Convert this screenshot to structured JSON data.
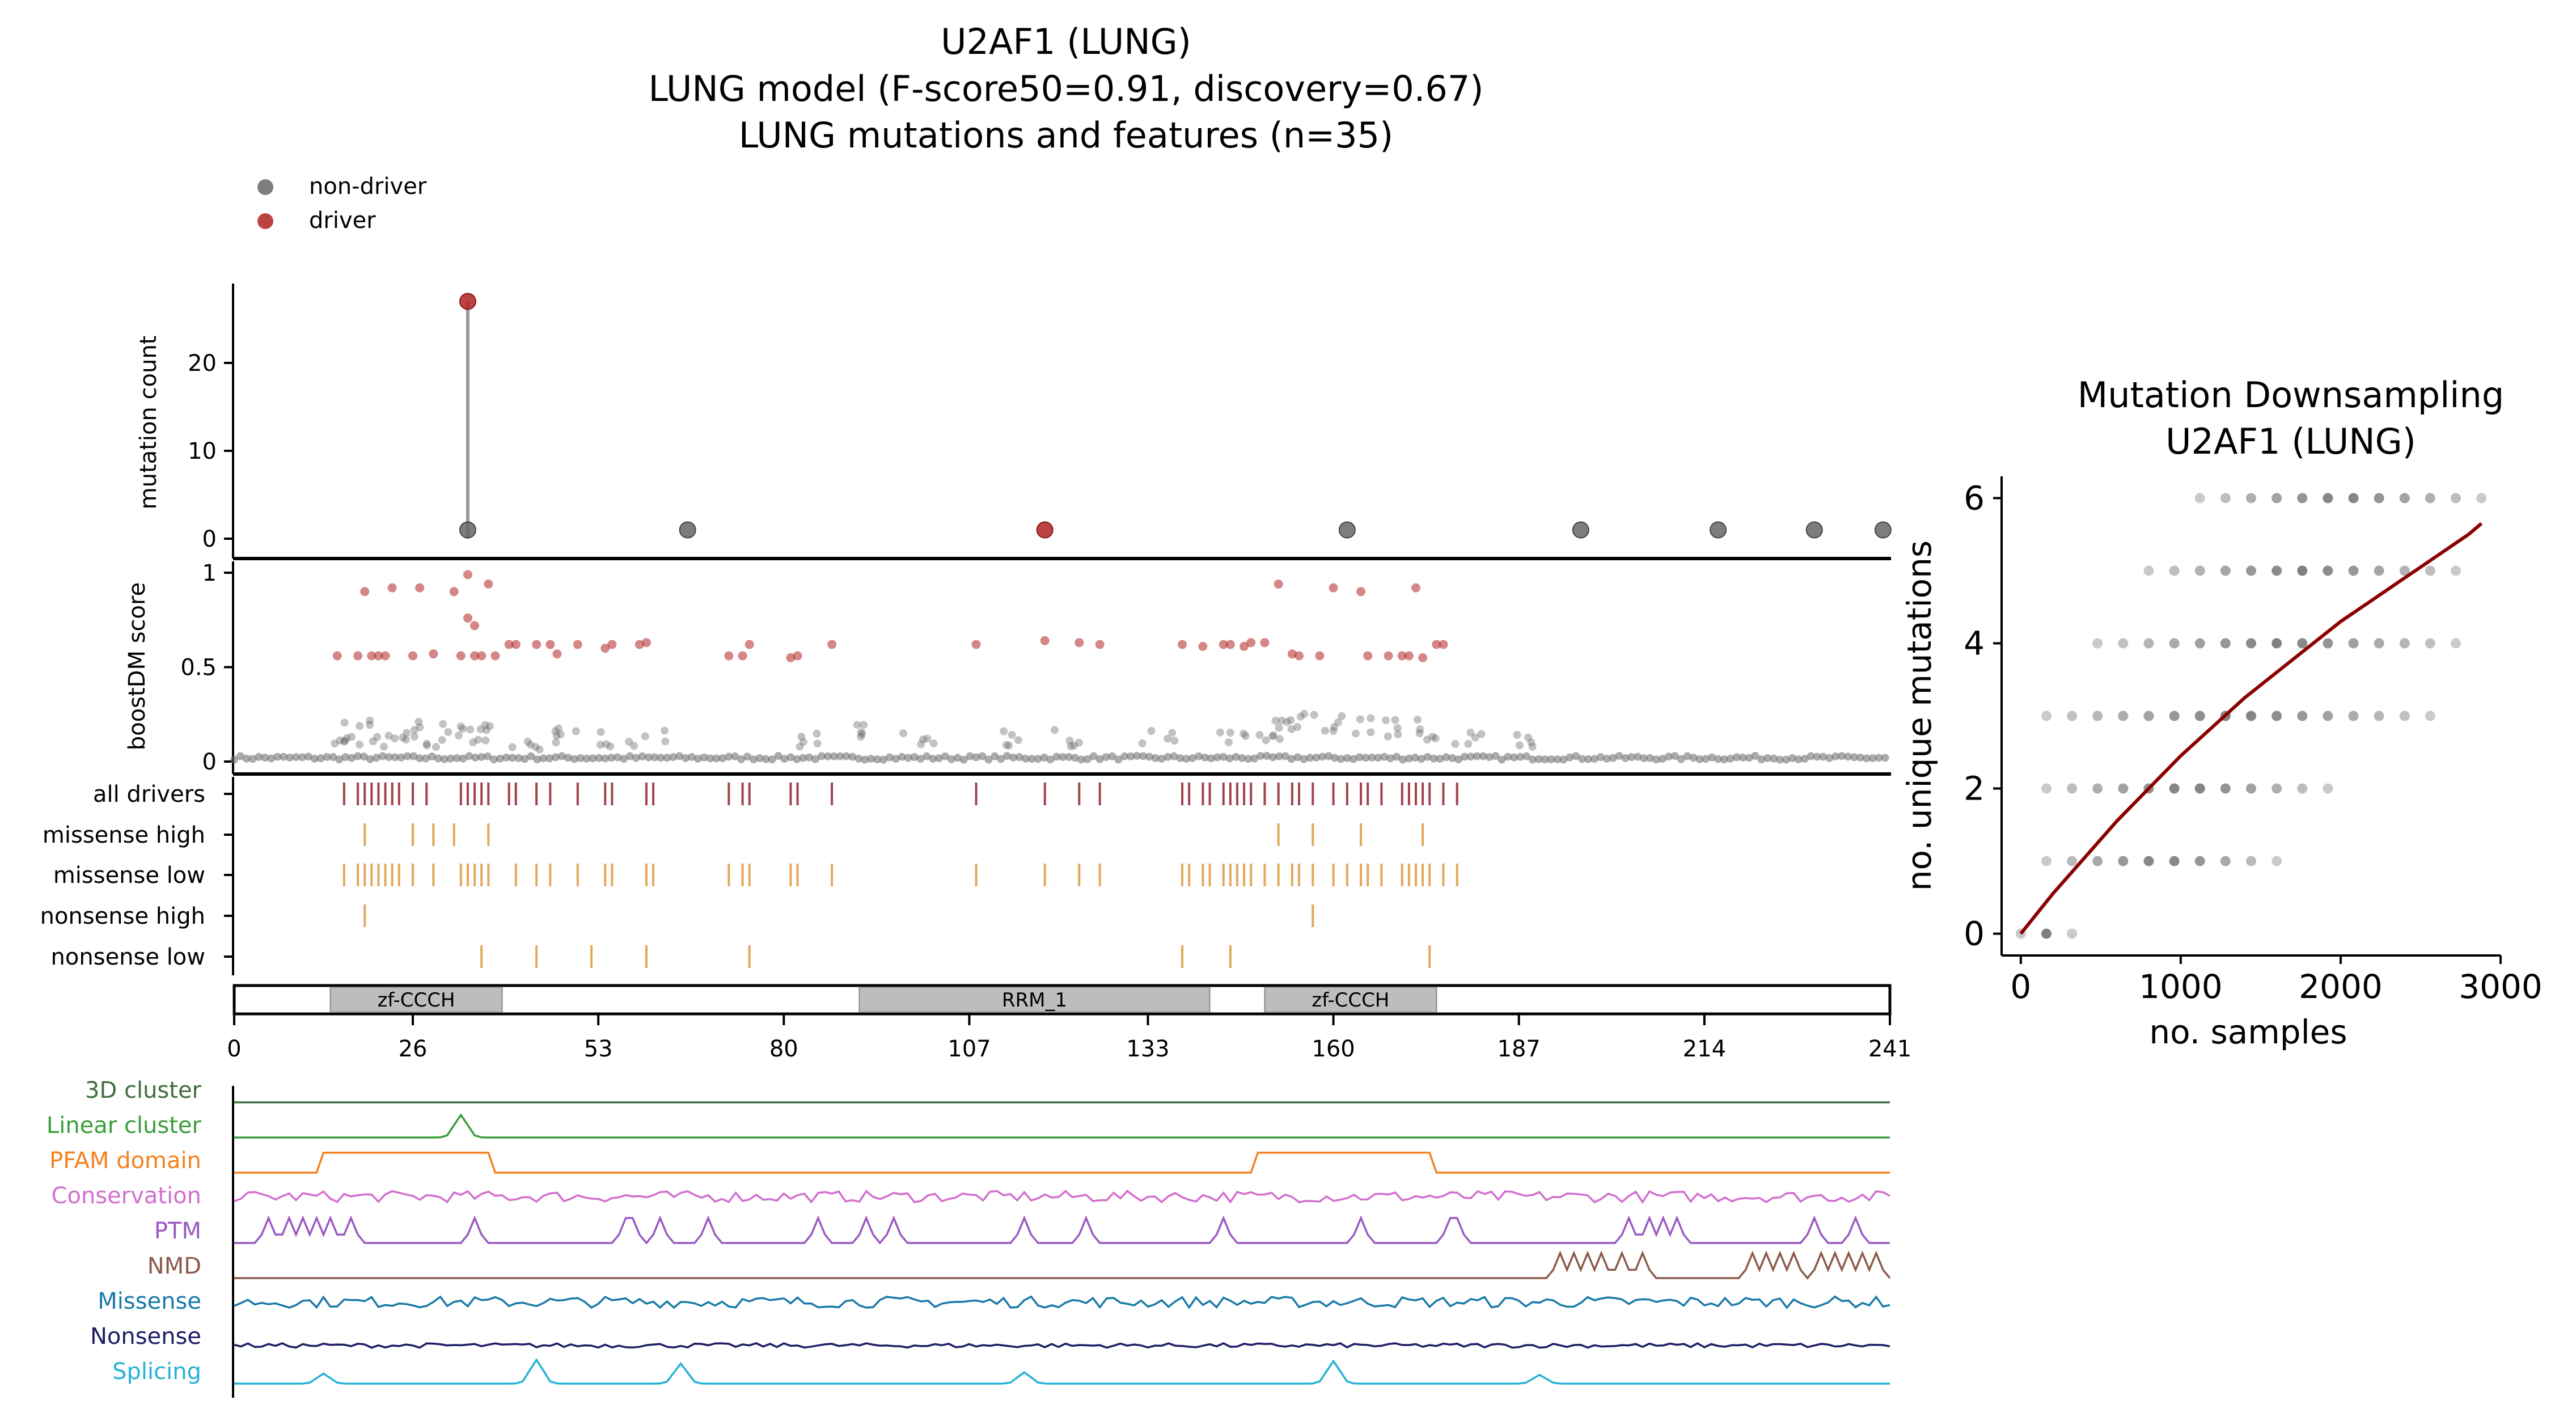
{
  "header": {
    "title_line1": "U2AF1 (LUNG)",
    "title_line2": "LUNG model (F-score50=0.91, discovery=0.67)",
    "title_line3": "LUNG mutations and features (n=35)"
  },
  "legend": {
    "items": [
      {
        "label": "non-driver",
        "color": "#666666"
      },
      {
        "label": "driver",
        "color": "#b22222"
      }
    ]
  },
  "colors": {
    "driver": "#b22222",
    "nondriver": "#666666",
    "track_driver": "#a0424c",
    "track_feature": "#e3a85a",
    "curve": "#8b0000",
    "domain_fill": "#bdbdbd"
  },
  "chart_data": [
    {
      "type": "scatter",
      "panel": "mutation-count-lollipop",
      "ylabel": "mutation count",
      "ylim": [
        0,
        28
      ],
      "yticks": [
        0,
        10,
        20
      ],
      "points": [
        {
          "pos": 34,
          "count": 27,
          "driver": true
        },
        {
          "pos": 34,
          "count": 1,
          "driver": false
        },
        {
          "pos": 66,
          "count": 1,
          "driver": false
        },
        {
          "pos": 118,
          "count": 1,
          "driver": true
        },
        {
          "pos": 162,
          "count": 1,
          "driver": false
        },
        {
          "pos": 196,
          "count": 1,
          "driver": false
        },
        {
          "pos": 216,
          "count": 1,
          "driver": false
        },
        {
          "pos": 230,
          "count": 1,
          "driver": false
        },
        {
          "pos": 240,
          "count": 1,
          "driver": false
        }
      ]
    },
    {
      "type": "scatter",
      "panel": "boostdm-score",
      "ylabel": "boostDM score",
      "ylim": [
        0,
        1
      ],
      "yticks": [
        "0",
        "0.5",
        "1"
      ],
      "driver_points": [
        [
          15,
          0.56
        ],
        [
          19,
          0.9
        ],
        [
          18,
          0.56
        ],
        [
          20,
          0.56
        ],
        [
          21,
          0.56
        ],
        [
          22,
          0.56
        ],
        [
          23,
          0.92
        ],
        [
          26,
          0.56
        ],
        [
          27,
          0.92
        ],
        [
          29,
          0.57
        ],
        [
          32,
          0.9
        ],
        [
          33,
          0.56
        ],
        [
          34,
          0.99
        ],
        [
          34,
          0.76
        ],
        [
          35,
          0.72
        ],
        [
          35,
          0.56
        ],
        [
          36,
          0.56
        ],
        [
          37,
          0.94
        ],
        [
          38,
          0.56
        ],
        [
          40,
          0.62
        ],
        [
          41,
          0.62
        ],
        [
          44,
          0.62
        ],
        [
          46,
          0.62
        ],
        [
          47,
          0.57
        ],
        [
          50,
          0.62
        ],
        [
          54,
          0.6
        ],
        [
          55,
          0.62
        ],
        [
          59,
          0.62
        ],
        [
          60,
          0.63
        ],
        [
          72,
          0.56
        ],
        [
          74,
          0.56
        ],
        [
          75,
          0.62
        ],
        [
          81,
          0.55
        ],
        [
          82,
          0.56
        ],
        [
          87,
          0.62
        ],
        [
          108,
          0.62
        ],
        [
          118,
          0.64
        ],
        [
          123,
          0.63
        ],
        [
          126,
          0.62
        ],
        [
          138,
          0.62
        ],
        [
          141,
          0.61
        ],
        [
          144,
          0.62
        ],
        [
          145,
          0.62
        ],
        [
          147,
          0.61
        ],
        [
          148,
          0.63
        ],
        [
          150,
          0.63
        ],
        [
          154,
          0.57
        ],
        [
          152,
          0.94
        ],
        [
          155,
          0.56
        ],
        [
          158,
          0.56
        ],
        [
          160,
          0.92
        ],
        [
          164,
          0.9
        ],
        [
          165,
          0.56
        ],
        [
          168,
          0.56
        ],
        [
          170,
          0.56
        ],
        [
          171,
          0.56
        ],
        [
          172,
          0.92
        ],
        [
          173,
          0.55
        ],
        [
          175,
          0.62
        ],
        [
          176,
          0.62
        ]
      ],
      "nondriver_band_xrange": [
        0,
        241
      ],
      "nondriver_baseline": 0.02,
      "nondriver_cloud": [
        [
          15,
          0.12
        ],
        [
          17,
          0.2
        ],
        [
          20,
          0.14
        ],
        [
          24,
          0.2
        ],
        [
          28,
          0.2
        ],
        [
          30,
          0.15
        ],
        [
          34,
          0.2
        ],
        [
          36,
          0.2
        ],
        [
          42,
          0.12
        ],
        [
          45,
          0.18
        ],
        [
          52,
          0.15
        ],
        [
          60,
          0.16
        ],
        [
          85,
          0.15
        ],
        [
          90,
          0.18
        ],
        [
          100,
          0.16
        ],
        [
          115,
          0.16
        ],
        [
          120,
          0.16
        ],
        [
          135,
          0.16
        ],
        [
          145,
          0.15
        ],
        [
          150,
          0.2
        ],
        [
          152,
          0.22
        ],
        [
          155,
          0.25
        ],
        [
          160,
          0.25
        ],
        [
          165,
          0.26
        ],
        [
          170,
          0.25
        ],
        [
          175,
          0.17
        ],
        [
          180,
          0.15
        ],
        [
          186,
          0.15
        ]
      ]
    },
    {
      "type": "table",
      "panel": "feature-tracks",
      "rows": [
        {
          "label": "all drivers",
          "positions": [
            16,
            18,
            19,
            20,
            21,
            22,
            23,
            24,
            26,
            28,
            33,
            34,
            35,
            36,
            37,
            40,
            41,
            44,
            46,
            50,
            54,
            55,
            60,
            61,
            72,
            74,
            75,
            81,
            82,
            87,
            108,
            118,
            123,
            126,
            138,
            139,
            141,
            142,
            144,
            145,
            146,
            147,
            148,
            150,
            152,
            154,
            155,
            157,
            160,
            162,
            164,
            165,
            167,
            170,
            171,
            172,
            173,
            174,
            176,
            178
          ]
        },
        {
          "label": "missense high",
          "positions": [
            19,
            26,
            29,
            32,
            37,
            152,
            157,
            164,
            173
          ]
        },
        {
          "label": "missense low",
          "positions": [
            16,
            18,
            19,
            20,
            21,
            22,
            23,
            24,
            26,
            29,
            33,
            34,
            35,
            36,
            37,
            41,
            44,
            46,
            50,
            54,
            55,
            60,
            61,
            72,
            74,
            75,
            81,
            82,
            87,
            108,
            118,
            123,
            126,
            138,
            139,
            141,
            142,
            144,
            145,
            146,
            147,
            148,
            150,
            152,
            154,
            155,
            157,
            160,
            162,
            164,
            165,
            167,
            170,
            171,
            172,
            173,
            174,
            176,
            178
          ]
        },
        {
          "label": "nonsense high",
          "positions": [
            19,
            157
          ]
        },
        {
          "label": "nonsense low",
          "positions": [
            36,
            44,
            52,
            60,
            75,
            138,
            145,
            174
          ]
        }
      ]
    },
    {
      "type": "bar",
      "panel": "protein-domains",
      "domains": [
        {
          "name": "zf-CCCH",
          "start": 14,
          "end": 39
        },
        {
          "name": "RRM_1",
          "start": 91,
          "end": 142
        },
        {
          "name": "zf-CCCH",
          "start": 150,
          "end": 175
        }
      ],
      "xticks": [
        "0",
        "26",
        "53",
        "80",
        "107",
        "133",
        "160",
        "187",
        "214",
        "241"
      ],
      "xlim": [
        0,
        241
      ]
    },
    {
      "type": "line",
      "panel": "feature-profiles",
      "series": [
        {
          "name": "3D cluster",
          "color": "#3f6d3f",
          "shape": "flat"
        },
        {
          "name": "Linear cluster",
          "color": "#3a9d3a",
          "shape": "bump",
          "bumps": [
            [
              33,
              0.9
            ]
          ]
        },
        {
          "name": "PFAM domain",
          "color": "#f5821f",
          "shape": "domains"
        },
        {
          "name": "Conservation",
          "color": "#d26fcf",
          "shape": "noise_high"
        },
        {
          "name": "PTM",
          "color": "#9b59c5",
          "shape": "spikes",
          "spikes": [
            5,
            8,
            10,
            12,
            14,
            17,
            35,
            57,
            58,
            62,
            69,
            85,
            92,
            96,
            115,
            124,
            144,
            164,
            177,
            178,
            203,
            206,
            208,
            210,
            230,
            236
          ]
        },
        {
          "name": "NMD",
          "color": "#8b5a4a",
          "shape": "spikes_right",
          "spikes": [
            193,
            195,
            197,
            199,
            202,
            205,
            221,
            223,
            225,
            227,
            231,
            233,
            235,
            237,
            239
          ]
        },
        {
          "name": "Missense",
          "color": "#1a7aa8",
          "shape": "noise_high"
        },
        {
          "name": "Nonsense",
          "color": "#1c1c66",
          "shape": "noise_low"
        },
        {
          "name": "Splicing",
          "color": "#27b1d6",
          "shape": "bump",
          "bumps": [
            [
              13,
              0.4
            ],
            [
              44,
              0.95
            ],
            [
              65,
              0.8
            ],
            [
              115,
              0.45
            ],
            [
              160,
              0.9
            ],
            [
              190,
              0.35
            ]
          ]
        }
      ]
    },
    {
      "type": "scatter",
      "panel": "mutation-downsampling",
      "title_line1": "Mutation Downsampling",
      "title_line2": "U2AF1 (LUNG)",
      "xlabel": "no. samples",
      "ylabel": "no. unique mutations",
      "xlim": [
        -120,
        3000
      ],
      "ylim": [
        -0.3,
        6.3
      ],
      "xticks": [
        "0",
        "1000",
        "2000",
        "3000"
      ],
      "yticks": [
        "0",
        "2",
        "4",
        "6"
      ],
      "x_samples": [
        0,
        160,
        320,
        480,
        640,
        800,
        960,
        1120,
        1280,
        1440,
        1600,
        1760,
        1920,
        2080,
        2240,
        2400,
        2560,
        2720,
        2880
      ],
      "levels": [
        {
          "y": 0,
          "from": 0,
          "to": 320
        },
        {
          "y": 1,
          "from": 160,
          "to": 1600
        },
        {
          "y": 2,
          "from": 160,
          "to": 1920
        },
        {
          "y": 3,
          "from": 160,
          "to": 2560
        },
        {
          "y": 4,
          "from": 480,
          "to": 2720
        },
        {
          "y": 5,
          "from": 800,
          "to": 2720
        },
        {
          "y": 6,
          "from": 1120,
          "to": 2880
        }
      ],
      "curve": [
        [
          0,
          0
        ],
        [
          200,
          0.55
        ],
        [
          400,
          1.05
        ],
        [
          600,
          1.55
        ],
        [
          800,
          2.0
        ],
        [
          1000,
          2.45
        ],
        [
          1200,
          2.85
        ],
        [
          1400,
          3.25
        ],
        [
          1600,
          3.6
        ],
        [
          1800,
          3.95
        ],
        [
          2000,
          4.3
        ],
        [
          2200,
          4.6
        ],
        [
          2400,
          4.9
        ],
        [
          2600,
          5.2
        ],
        [
          2800,
          5.5
        ],
        [
          2880,
          5.65
        ]
      ]
    }
  ]
}
